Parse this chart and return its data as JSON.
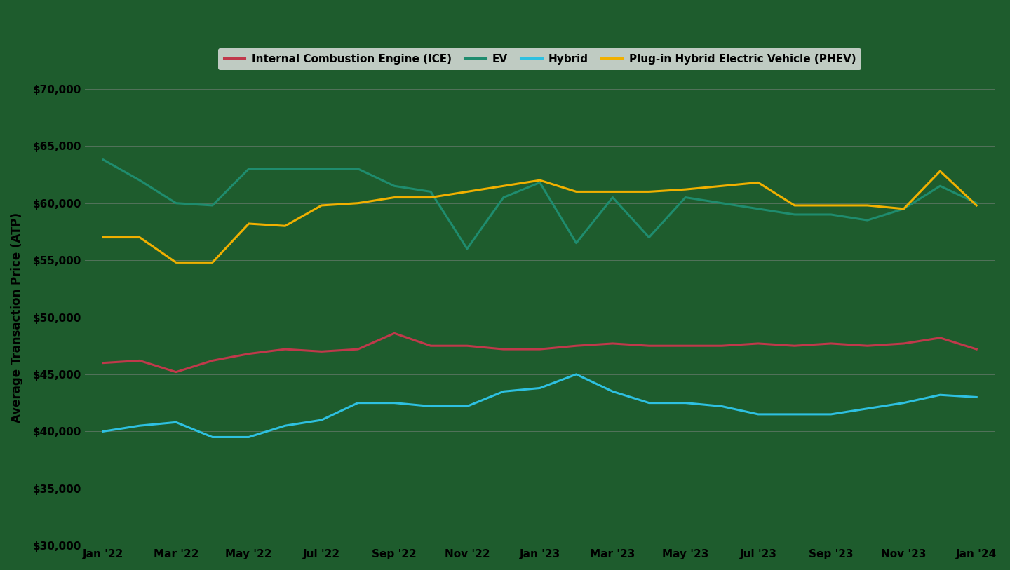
{
  "title": "",
  "ylabel": "Average Transaction Price (ATP)",
  "background_color": "#1e5c2d",
  "plot_bg_color": "#1e5c2d",
  "grid_color": "#888888",
  "text_color": "#000000",
  "legend_bg_color": "#e8e8e8",
  "x_labels": [
    "Jan '22",
    "Mar '22",
    "May '22",
    "Jul '22",
    "Sep '22",
    "Nov '22",
    "Jan '23",
    "Mar '23",
    "May '23",
    "Jul '23",
    "Sep '23",
    "Nov '23",
    "Jan '24"
  ],
  "series": {
    "ICE": {
      "label": "Internal Combustion Engine (ICE)",
      "color": "#c0394b",
      "data": [
        46000,
        46200,
        45200,
        46200,
        46800,
        47200,
        47000,
        47200,
        48600,
        47500,
        47500,
        47200,
        47200,
        47500,
        47700,
        47500,
        47500,
        47500,
        47700,
        47500,
        47700,
        47500,
        47700,
        48200,
        47200
      ]
    },
    "EV": {
      "label": "EV",
      "color": "#1f8c6e",
      "data": [
        63800,
        62000,
        60000,
        59800,
        63000,
        63000,
        63000,
        63000,
        61500,
        61000,
        56000,
        60500,
        61800,
        56500,
        60500,
        57000,
        60500,
        60000,
        59500,
        59000,
        59000,
        58500,
        59500,
        61500,
        60000
      ]
    },
    "Hybrid": {
      "label": "Hybrid",
      "color": "#2ec0e0",
      "data": [
        40000,
        40500,
        40800,
        39500,
        39500,
        40500,
        41000,
        42500,
        42500,
        42200,
        42200,
        43500,
        43800,
        45000,
        43500,
        42500,
        42500,
        42200,
        41500,
        41500,
        41500,
        42000,
        42500,
        43200,
        43000
      ]
    },
    "PHEV": {
      "label": "Plug-in Hybrid Electric Vehicle (PHEV)",
      "color": "#f0b000",
      "data": [
        57000,
        57000,
        54800,
        54800,
        58200,
        58000,
        59800,
        60000,
        60500,
        60500,
        61000,
        61500,
        62000,
        61000,
        61000,
        61000,
        61200,
        61500,
        61800,
        59800,
        59800,
        59800,
        59500,
        62800,
        59800
      ]
    }
  },
  "ylim": [
    30000,
    70000
  ],
  "yticks": [
    30000,
    35000,
    40000,
    45000,
    50000,
    55000,
    60000,
    65000,
    70000
  ],
  "figsize": [
    14.4,
    8.13
  ],
  "dpi": 100
}
